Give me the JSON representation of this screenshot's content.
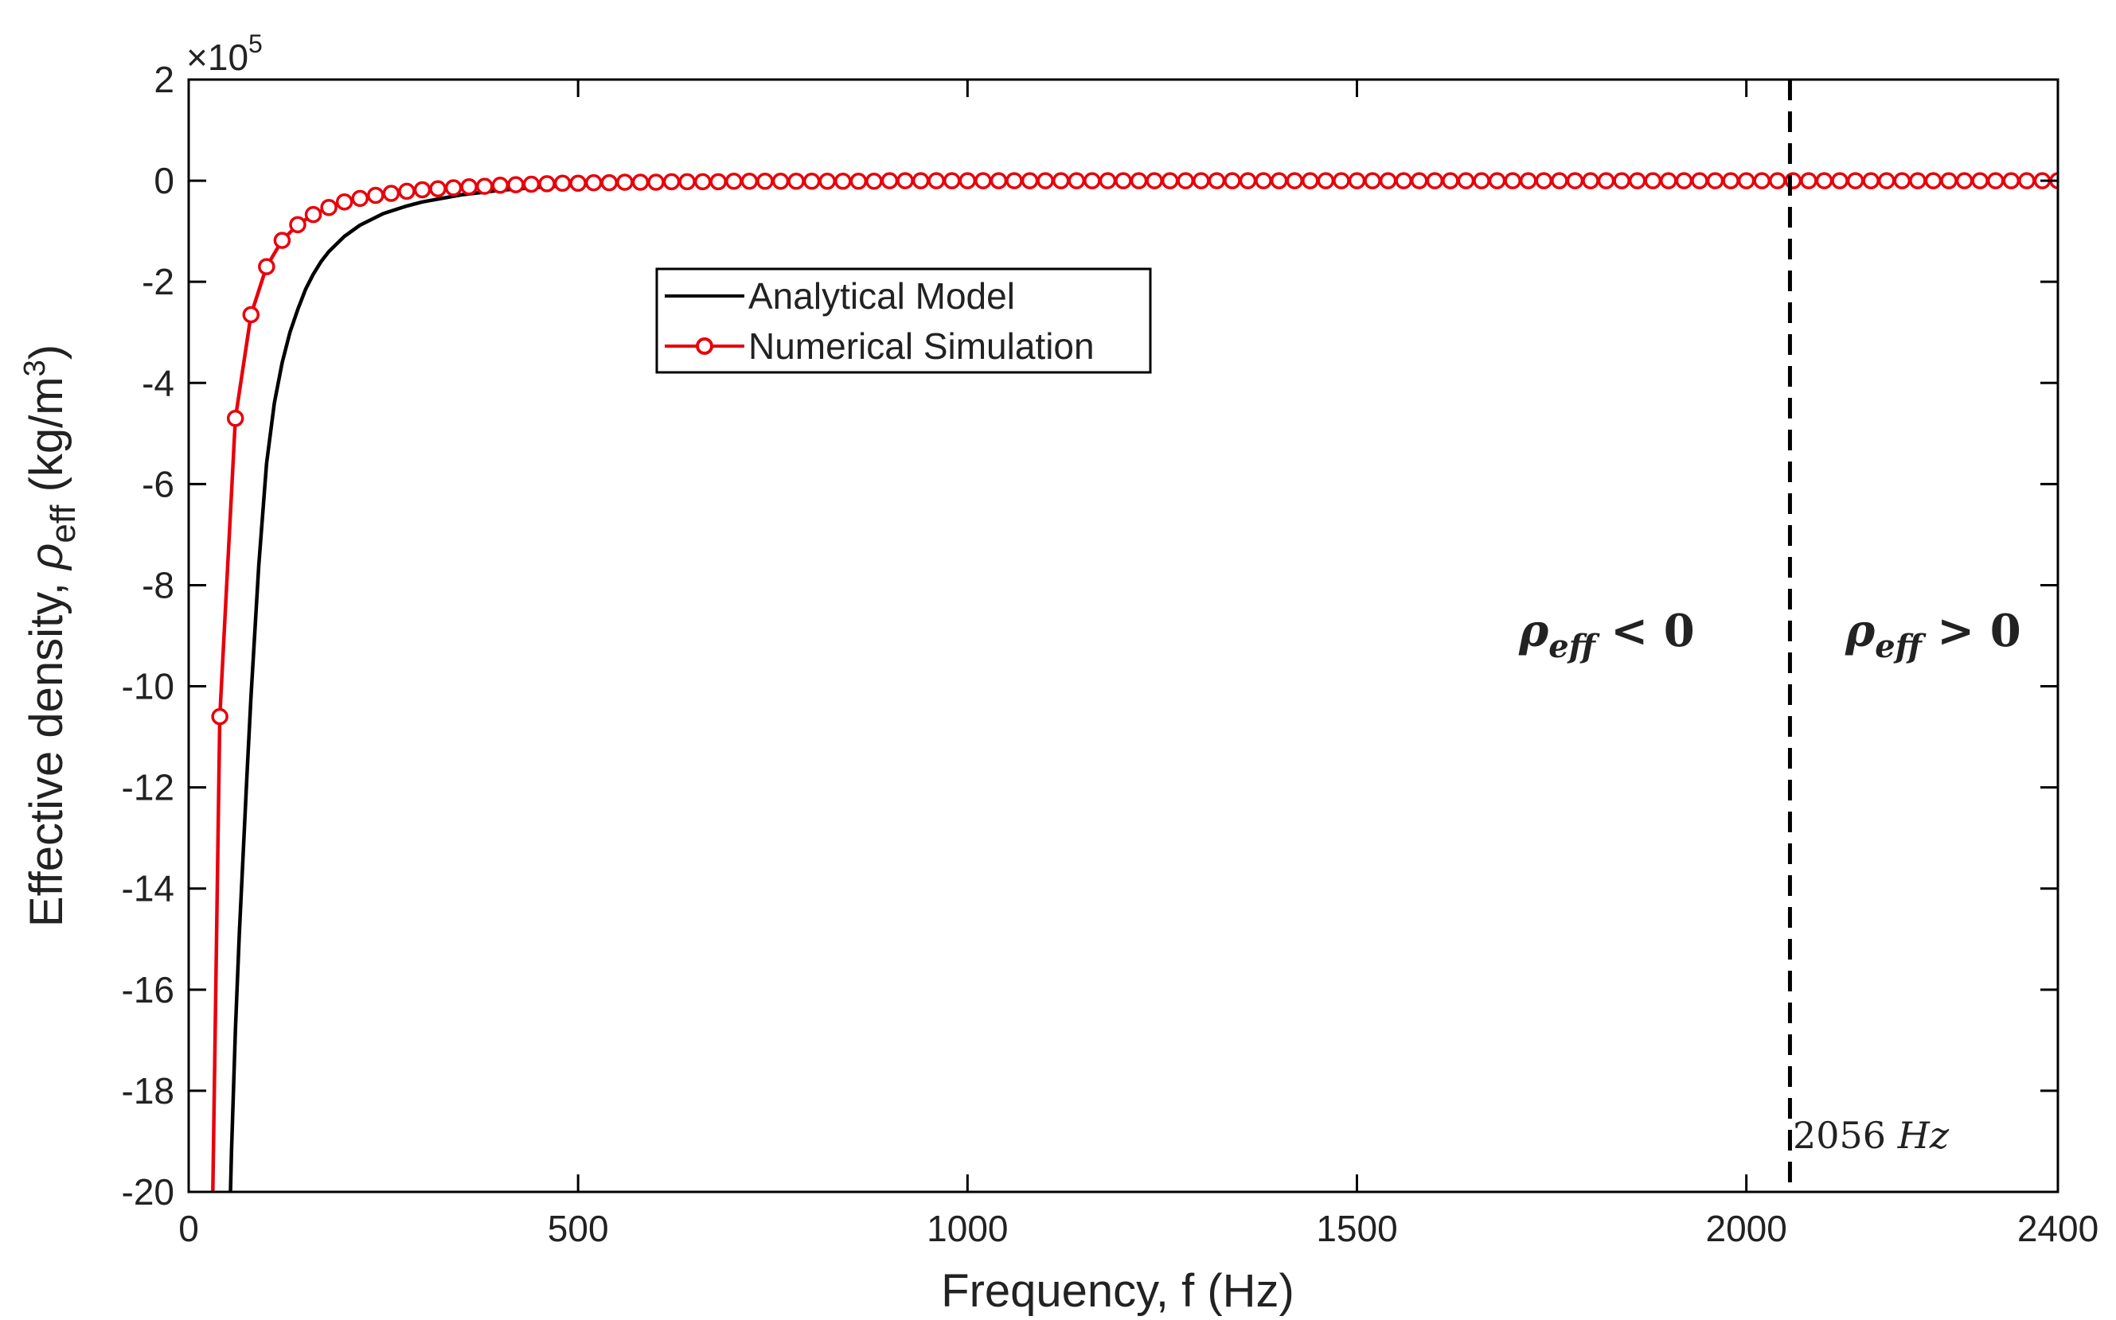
{
  "chart_data": {
    "type": "line",
    "title": "",
    "xlabel": "Frequency, f  (Hz)",
    "ylabel": {
      "prefix": "Effective density, ",
      "symbol": "ρ",
      "subscript": "eff",
      "units_prefix": " (kg/m",
      "units_superscript": "3",
      "units_suffix": ")"
    },
    "y_multiplier": {
      "base": "×10",
      "exponent": "5"
    },
    "xlim": [
      0,
      2400
    ],
    "ylim": [
      -20,
      2
    ],
    "x_ticks": [
      0,
      500,
      1000,
      1500,
      2000,
      2400
    ],
    "y_ticks": [
      2,
      0,
      -2,
      -4,
      -6,
      -8,
      -10,
      -12,
      -14,
      -16,
      -18,
      -20
    ],
    "grid": false,
    "legend": {
      "placement": "upper-center-left",
      "entries": [
        "Analytical Model",
        "Numerical Simulation"
      ]
    },
    "series": [
      {
        "name": "Analytical Model",
        "color": "#000000",
        "marker": "none",
        "x": [
          52,
          55,
          60,
          65,
          70,
          75,
          80,
          90,
          100,
          110,
          120,
          130,
          140,
          150,
          160,
          170,
          180,
          200,
          220,
          250,
          280,
          300,
          350,
          400,
          450,
          500,
          600,
          700,
          800,
          1000,
          1200,
          1500,
          2000,
          2400
        ],
        "y": [
          -21,
          -19.2,
          -16.8,
          -14.9,
          -13.3,
          -11.7,
          -10.2,
          -7.6,
          -5.6,
          -4.4,
          -3.6,
          -3.0,
          -2.55,
          -2.15,
          -1.85,
          -1.6,
          -1.4,
          -1.1,
          -0.88,
          -0.65,
          -0.5,
          -0.42,
          -0.28,
          -0.19,
          -0.13,
          -0.09,
          -0.05,
          -0.03,
          -0.02,
          -0.01,
          -0.005,
          0.0,
          0.0,
          0.0
        ]
      },
      {
        "name": "Numerical Simulation",
        "color": "#e8000b",
        "marker": "circle",
        "x": [
          30,
          40,
          60,
          80,
          100,
          120,
          140,
          160,
          180,
          200,
          220,
          240,
          260,
          280,
          300,
          320,
          340,
          360,
          380,
          400,
          420,
          440,
          460,
          480,
          500,
          520,
          540,
          560,
          580,
          600,
          620,
          640,
          660,
          680,
          700,
          720,
          740,
          760,
          780,
          800,
          820,
          840,
          860,
          880,
          900,
          920,
          940,
          960,
          980,
          1000,
          1020,
          1040,
          1060,
          1080,
          1100,
          1120,
          1140,
          1160,
          1180,
          1200,
          1220,
          1240,
          1260,
          1280,
          1300,
          1320,
          1340,
          1360,
          1380,
          1400,
          1420,
          1440,
          1460,
          1480,
          1500,
          1520,
          1540,
          1560,
          1580,
          1600,
          1620,
          1640,
          1660,
          1680,
          1700,
          1720,
          1740,
          1760,
          1780,
          1800,
          1820,
          1840,
          1860,
          1880,
          1900,
          1920,
          1940,
          1960,
          1980,
          2000,
          2020,
          2040,
          2060,
          2080,
          2100,
          2120,
          2140,
          2160,
          2180,
          2200,
          2220,
          2240,
          2260,
          2280,
          2300,
          2320,
          2340,
          2360,
          2380,
          2400
        ],
        "y": [
          -21,
          -10.6,
          -4.7,
          -2.65,
          -1.7,
          -1.18,
          -0.87,
          -0.67,
          -0.53,
          -0.42,
          -0.35,
          -0.29,
          -0.25,
          -0.21,
          -0.18,
          -0.16,
          -0.14,
          -0.12,
          -0.11,
          -0.09,
          -0.08,
          -0.07,
          -0.06,
          -0.05,
          -0.05,
          -0.04,
          -0.04,
          -0.03,
          -0.03,
          -0.03,
          -0.02,
          -0.02,
          -0.02,
          -0.02,
          -0.01,
          -0.01,
          -0.01,
          -0.01,
          -0.01,
          -0.01,
          -0.01,
          -0.01,
          -0.01,
          -0.01,
          0,
          0,
          0,
          0,
          0,
          0,
          0,
          0,
          0,
          0,
          0,
          0,
          0,
          0,
          0,
          0,
          0,
          0,
          0,
          0,
          0,
          0,
          0,
          0,
          0,
          0,
          0,
          0,
          0,
          0,
          0,
          0,
          0,
          0,
          0,
          0,
          0,
          0,
          0,
          0,
          0,
          0,
          0,
          0,
          0,
          0,
          0,
          0,
          0,
          0,
          0,
          0,
          0,
          0,
          0,
          0,
          0,
          0,
          0,
          0,
          0,
          0,
          0,
          0,
          0,
          0,
          0,
          0,
          0,
          0,
          0,
          0,
          0,
          0,
          0,
          0
        ]
      }
    ],
    "reference_lines": [
      {
        "type": "vertical",
        "x": 2056,
        "style": "dashed",
        "color": "#000000",
        "label_value": "2056",
        "label_unit": "Hz"
      }
    ],
    "annotations": [
      {
        "id": "neg",
        "symbol": "ρ",
        "subscript": "eff",
        "relation": " < 0",
        "x": 1820,
        "y": -9.1
      },
      {
        "id": "pos",
        "symbol": "ρ",
        "subscript": "eff",
        "relation": " > 0",
        "x": 2240,
        "y": -9.1
      }
    ]
  }
}
